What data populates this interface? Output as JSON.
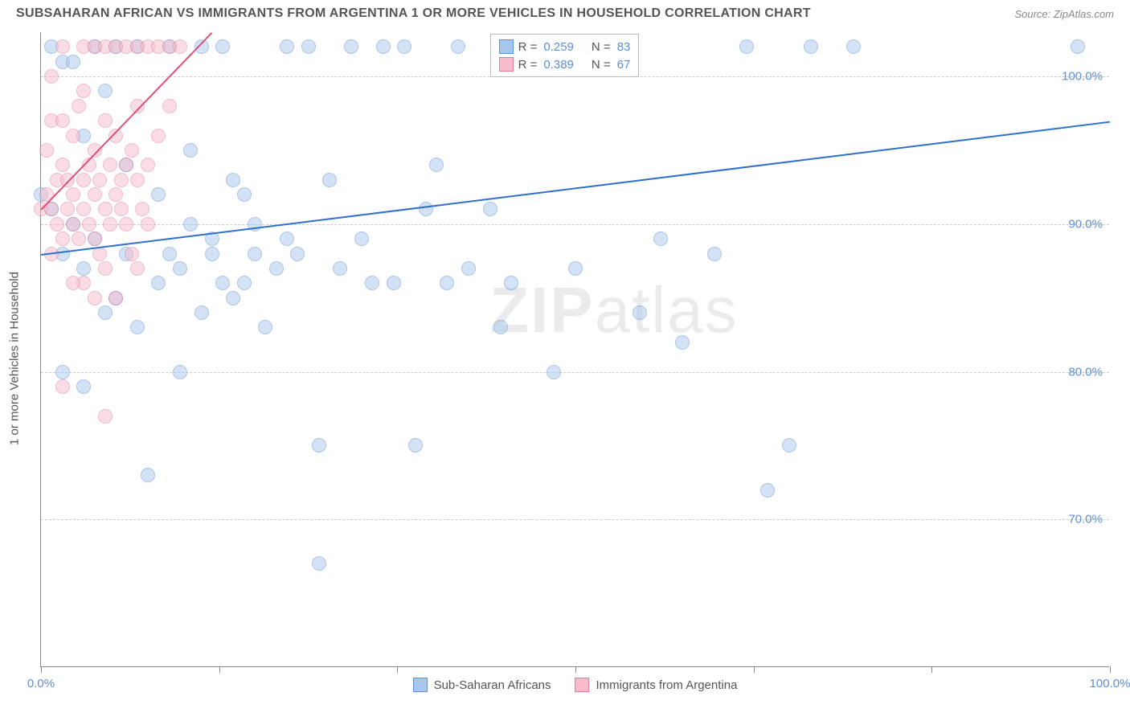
{
  "title": "SUBSAHARAN AFRICAN VS IMMIGRANTS FROM ARGENTINA 1 OR MORE VEHICLES IN HOUSEHOLD CORRELATION CHART",
  "source": "Source: ZipAtlas.com",
  "watermark_a": "ZIP",
  "watermark_b": "atlas",
  "ylabel": "1 or more Vehicles in Household",
  "chart": {
    "type": "scatter",
    "xlim": [
      0,
      100
    ],
    "ylim": [
      60,
      103
    ],
    "yticks": [
      70,
      80,
      90,
      100
    ],
    "ytick_labels": [
      "70.0%",
      "80.0%",
      "90.0%",
      "100.0%"
    ],
    "xtick_positions": [
      0,
      16.7,
      33.3,
      50,
      66.7,
      83.3,
      100
    ],
    "xtick_labels_left": "0.0%",
    "xtick_labels_right": "100.0%",
    "grid_color": "#cccccc",
    "background_color": "#ffffff",
    "point_radius": 9,
    "point_opacity": 0.5,
    "series": [
      {
        "name": "Sub-Saharan Africans",
        "fill": "#a9c7ec",
        "stroke": "#5b8fd6",
        "trend_color": "#2f6fd0",
        "trend": {
          "x1": 0,
          "y1": 88,
          "x2": 100,
          "y2": 97
        },
        "r": 0.259,
        "n": 83,
        "points": [
          [
            0,
            92
          ],
          [
            1,
            91
          ],
          [
            1,
            102
          ],
          [
            2,
            88
          ],
          [
            2,
            101
          ],
          [
            2,
            80
          ],
          [
            3,
            90
          ],
          [
            3,
            101
          ],
          [
            4,
            87
          ],
          [
            4,
            96
          ],
          [
            5,
            89
          ],
          [
            5,
            102
          ],
          [
            6,
            84
          ],
          [
            6,
            99
          ],
          [
            7,
            85
          ],
          [
            7,
            102
          ],
          [
            8,
            88
          ],
          [
            8,
            94
          ],
          [
            9,
            83
          ],
          [
            9,
            102
          ],
          [
            10,
            73
          ],
          [
            11,
            92
          ],
          [
            11,
            86
          ],
          [
            12,
            88
          ],
          [
            12,
            102
          ],
          [
            13,
            87
          ],
          [
            13,
            80
          ],
          [
            14,
            95
          ],
          [
            14,
            90
          ],
          [
            15,
            84
          ],
          [
            15,
            102
          ],
          [
            16,
            89
          ],
          [
            16,
            88
          ],
          [
            17,
            86
          ],
          [
            17,
            102
          ],
          [
            18,
            93
          ],
          [
            18,
            85
          ],
          [
            19,
            86
          ],
          [
            19,
            92
          ],
          [
            20,
            88
          ],
          [
            20,
            90
          ],
          [
            21,
            83
          ],
          [
            22,
            87
          ],
          [
            23,
            102
          ],
          [
            23,
            89
          ],
          [
            24,
            88
          ],
          [
            25,
            102
          ],
          [
            26,
            75
          ],
          [
            26,
            67
          ],
          [
            27,
            93
          ],
          [
            28,
            87
          ],
          [
            29,
            102
          ],
          [
            30,
            89
          ],
          [
            31,
            86
          ],
          [
            32,
            102
          ],
          [
            33,
            86
          ],
          [
            34,
            102
          ],
          [
            35,
            75
          ],
          [
            36,
            91
          ],
          [
            37,
            94
          ],
          [
            38,
            86
          ],
          [
            39,
            102
          ],
          [
            40,
            87
          ],
          [
            42,
            91
          ],
          [
            43,
            83
          ],
          [
            44,
            86
          ],
          [
            45,
            101
          ],
          [
            47,
            102
          ],
          [
            48,
            80
          ],
          [
            50,
            87
          ],
          [
            51,
            102
          ],
          [
            54,
            102
          ],
          [
            56,
            84
          ],
          [
            58,
            89
          ],
          [
            60,
            82
          ],
          [
            63,
            88
          ],
          [
            66,
            102
          ],
          [
            68,
            72
          ],
          [
            70,
            75
          ],
          [
            72,
            102
          ],
          [
            76,
            102
          ],
          [
            97,
            102
          ],
          [
            4,
            79
          ]
        ]
      },
      {
        "name": "Immigrants from Argentina",
        "fill": "#f6bccb",
        "stroke": "#e37c9b",
        "trend_color": "#e04f7a",
        "trend": {
          "x1": 0,
          "y1": 91,
          "x2": 16,
          "y2": 103
        },
        "r": 0.389,
        "n": 67,
        "points": [
          [
            0,
            91
          ],
          [
            0.5,
            92
          ],
          [
            0.5,
            95
          ],
          [
            1,
            91
          ],
          [
            1,
            97
          ],
          [
            1,
            100
          ],
          [
            1.5,
            90
          ],
          [
            1.5,
            93
          ],
          [
            2,
            89
          ],
          [
            2,
            94
          ],
          [
            2,
            97
          ],
          [
            2,
            102
          ],
          [
            2.5,
            91
          ],
          [
            2.5,
            93
          ],
          [
            3,
            90
          ],
          [
            3,
            92
          ],
          [
            3,
            96
          ],
          [
            3.5,
            89
          ],
          [
            3.5,
            98
          ],
          [
            4,
            86
          ],
          [
            4,
            91
          ],
          [
            4,
            93
          ],
          [
            4,
            99
          ],
          [
            4,
            102
          ],
          [
            4.5,
            90
          ],
          [
            4.5,
            94
          ],
          [
            5,
            89
          ],
          [
            5,
            92
          ],
          [
            5,
            95
          ],
          [
            5,
            102
          ],
          [
            5.5,
            88
          ],
          [
            5.5,
            93
          ],
          [
            6,
            87
          ],
          [
            6,
            91
          ],
          [
            6,
            97
          ],
          [
            6,
            102
          ],
          [
            6.5,
            90
          ],
          [
            6.5,
            94
          ],
          [
            7,
            85
          ],
          [
            7,
            92
          ],
          [
            7,
            96
          ],
          [
            7,
            102
          ],
          [
            7.5,
            91
          ],
          [
            7.5,
            93
          ],
          [
            8,
            90
          ],
          [
            8,
            94
          ],
          [
            8,
            102
          ],
          [
            8.5,
            88
          ],
          [
            8.5,
            95
          ],
          [
            9,
            87
          ],
          [
            9,
            93
          ],
          [
            9,
            98
          ],
          [
            9,
            102
          ],
          [
            9.5,
            91
          ],
          [
            10,
            90
          ],
          [
            10,
            94
          ],
          [
            10,
            102
          ],
          [
            11,
            96
          ],
          [
            11,
            102
          ],
          [
            12,
            98
          ],
          [
            12,
            102
          ],
          [
            13,
            102
          ],
          [
            2,
            79
          ],
          [
            3,
            86
          ],
          [
            5,
            85
          ],
          [
            6,
            77
          ],
          [
            1,
            88
          ]
        ]
      }
    ]
  },
  "legend_top": {
    "r_label": "R =",
    "n_label": "N ="
  },
  "legend_bottom": {
    "series_a": "Sub-Saharan Africans",
    "series_b": "Immigrants from Argentina"
  }
}
